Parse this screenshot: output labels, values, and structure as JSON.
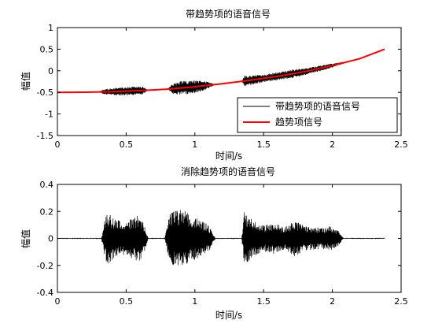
{
  "chart_data": [
    {
      "type": "line",
      "title": "带趋势项的语音信号",
      "xlabel": "时间/s",
      "ylabel": "幅值",
      "xlim": [
        0,
        2.5
      ],
      "ylim": [
        -1.5,
        1
      ],
      "xticks": [
        0,
        0.5,
        1,
        1.5,
        2,
        2.5
      ],
      "xtick_labels": [
        "0",
        "0.5",
        "1",
        "1.5",
        "2",
        "2.5"
      ],
      "yticks": [
        -1.5,
        -1,
        -0.5,
        0,
        0.5,
        1
      ],
      "ytick_labels": [
        "-1.5",
        "-1",
        "-0.5",
        "0",
        "0.5",
        "1"
      ],
      "legend": {
        "position": "bottom-right",
        "entries": [
          "带趋势项的语音信号",
          "趋势项信号"
        ]
      },
      "series": [
        {
          "name": "带趋势项的语音信号",
          "color": "#000000",
          "kind": "signal",
          "t_end": 2.08,
          "envelope": [
            [
              0.0,
              0.0
            ],
            [
              0.3,
              0.0
            ],
            [
              0.34,
              0.06
            ],
            [
              0.42,
              0.09
            ],
            [
              0.55,
              0.1
            ],
            [
              0.62,
              0.09
            ],
            [
              0.66,
              0.0
            ],
            [
              0.8,
              0.0
            ],
            [
              0.84,
              0.12
            ],
            [
              0.9,
              0.16
            ],
            [
              1.0,
              0.15
            ],
            [
              1.08,
              0.1
            ],
            [
              1.15,
              0.0
            ],
            [
              1.34,
              0.0
            ],
            [
              1.36,
              0.13
            ],
            [
              1.45,
              0.1
            ],
            [
              1.55,
              0.09
            ],
            [
              1.72,
              0.1
            ],
            [
              1.8,
              0.08
            ],
            [
              1.95,
              0.06
            ],
            [
              2.08,
              0.02
            ]
          ]
        },
        {
          "name": "趋势项信号",
          "color": "#ff0000",
          "kind": "trend",
          "x": [
            0,
            0.2,
            0.4,
            0.6,
            0.8,
            1.0,
            1.2,
            1.4,
            1.6,
            1.8,
            2.0,
            2.2,
            2.38
          ],
          "values": [
            -0.5,
            -0.497,
            -0.485,
            -0.46,
            -0.425,
            -0.37,
            -0.3,
            -0.22,
            -0.13,
            -0.02,
            0.12,
            0.28,
            0.5
          ]
        }
      ]
    },
    {
      "type": "line",
      "title": "消除趋势项的语音信号",
      "xlabel": "时间/s",
      "ylabel": "幅值",
      "xlim": [
        0,
        2.5
      ],
      "ylim": [
        -0.4,
        0.4
      ],
      "xticks": [
        0,
        0.5,
        1,
        1.5,
        2,
        2.5
      ],
      "xtick_labels": [
        "0",
        "0.5",
        "1",
        "1.5",
        "2",
        "2.5"
      ],
      "yticks": [
        -0.4,
        -0.2,
        0,
        0.2,
        0.4
      ],
      "ytick_labels": [
        "-0.4",
        "-0.2",
        "0",
        "0.2",
        "0.4"
      ],
      "series": [
        {
          "color": "#000000",
          "kind": "signal",
          "t_end": 2.38,
          "envelope": [
            [
              0.0,
              0.0
            ],
            [
              0.32,
              0.0
            ],
            [
              0.34,
              0.12
            ],
            [
              0.36,
              0.2
            ],
            [
              0.42,
              0.14
            ],
            [
              0.5,
              0.12
            ],
            [
              0.56,
              0.16
            ],
            [
              0.6,
              0.18
            ],
            [
              0.64,
              0.08
            ],
            [
              0.66,
              0.0
            ],
            [
              0.78,
              0.0
            ],
            [
              0.8,
              0.1
            ],
            [
              0.82,
              0.2
            ],
            [
              0.9,
              0.22
            ],
            [
              1.0,
              0.16
            ],
            [
              1.1,
              0.1
            ],
            [
              1.15,
              0.0
            ],
            [
              1.34,
              0.0
            ],
            [
              1.36,
              0.2
            ],
            [
              1.4,
              0.16
            ],
            [
              1.5,
              0.1
            ],
            [
              1.58,
              0.12
            ],
            [
              1.65,
              0.08
            ],
            [
              1.72,
              0.14
            ],
            [
              1.8,
              0.09
            ],
            [
              1.9,
              0.08
            ],
            [
              2.0,
              0.09
            ],
            [
              2.05,
              0.05
            ],
            [
              2.08,
              0.0
            ],
            [
              2.38,
              0.0
            ]
          ]
        }
      ]
    }
  ]
}
